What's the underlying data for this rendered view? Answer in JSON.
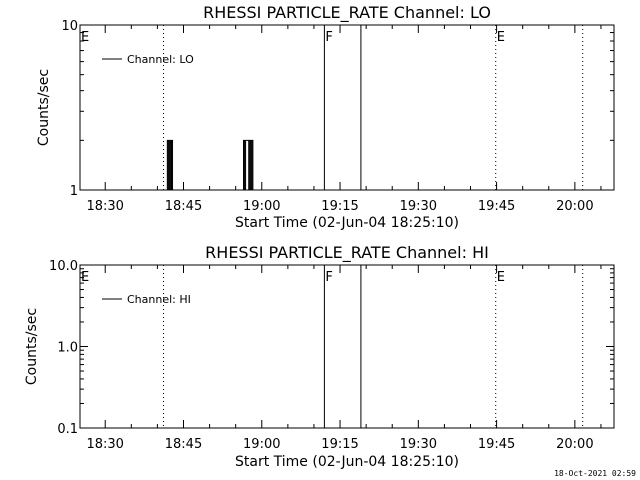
{
  "colors": {
    "background": "#ffffff",
    "foreground": "#000000"
  },
  "timestamp": "18-Oct-2021 02:59",
  "chart_data": [
    {
      "type": "line",
      "title": "RHESSI PARTICLE_RATE Channel: LO",
      "xlabel": "Start Time (02-Jun-04 18:25:10)",
      "ylabel": "Counts/sec",
      "yscale": "log",
      "ylim": [
        1,
        10
      ],
      "xlim": [
        "18:25:10",
        "20:07:30"
      ],
      "xticks": [
        "18:30",
        "18:45",
        "19:00",
        "19:15",
        "19:30",
        "19:45",
        "20:00"
      ],
      "yticks": [
        "1",
        "10"
      ],
      "legend": {
        "position": "top-left",
        "entries": [
          "Channel: LO"
        ]
      },
      "series": [
        {
          "name": "Channel: LO",
          "x": [
            "18:41:48",
            "18:42:00",
            "18:42:12",
            "18:42:24",
            "18:42:36",
            "18:42:48",
            "18:43:00",
            "18:56:24",
            "18:56:36",
            "18:56:48",
            "18:57:00",
            "18:57:12",
            "18:57:24",
            "18:57:36",
            "18:57:48",
            "18:58:00",
            "18:58:12",
            "18:58:24",
            "18:58:36"
          ],
          "y": [
            1,
            2,
            1,
            2,
            1,
            2,
            1,
            1,
            2,
            1,
            2,
            2,
            2,
            1,
            2,
            1,
            2,
            1,
            1
          ]
        }
      ],
      "vertical_markers": [
        {
          "label": "E",
          "time": "18:25:10",
          "style": "none"
        },
        {
          "label": "",
          "time": "18:41:10",
          "style": "dotted"
        },
        {
          "label": "F",
          "time": "19:12:00",
          "style": "solid"
        },
        {
          "label": "",
          "time": "19:19:00",
          "style": "solid"
        },
        {
          "label": "E",
          "time": "19:44:50",
          "style": "dotted"
        },
        {
          "label": "",
          "time": "20:01:30",
          "style": "dotted"
        }
      ]
    },
    {
      "type": "line",
      "title": "RHESSI PARTICLE_RATE Channel: HI",
      "xlabel": "Start Time (02-Jun-04 18:25:10)",
      "ylabel": "Counts/sec",
      "yscale": "log",
      "ylim": [
        0.1,
        10
      ],
      "xlim": [
        "18:25:10",
        "20:07:30"
      ],
      "xticks": [
        "18:30",
        "18:45",
        "19:00",
        "19:15",
        "19:30",
        "19:45",
        "20:00"
      ],
      "yticks": [
        "0.1",
        "1.0",
        "10.0"
      ],
      "legend": {
        "position": "top-left",
        "entries": [
          "Channel: HI"
        ]
      },
      "series": [
        {
          "name": "Channel: HI",
          "x": [],
          "y": []
        }
      ],
      "vertical_markers": [
        {
          "label": "E",
          "time": "18:25:10",
          "style": "none"
        },
        {
          "label": "",
          "time": "18:41:10",
          "style": "dotted"
        },
        {
          "label": "F",
          "time": "19:12:00",
          "style": "solid"
        },
        {
          "label": "",
          "time": "19:19:00",
          "style": "solid"
        },
        {
          "label": "E",
          "time": "19:44:50",
          "style": "dotted"
        },
        {
          "label": "",
          "time": "20:01:30",
          "style": "dotted"
        }
      ]
    }
  ]
}
